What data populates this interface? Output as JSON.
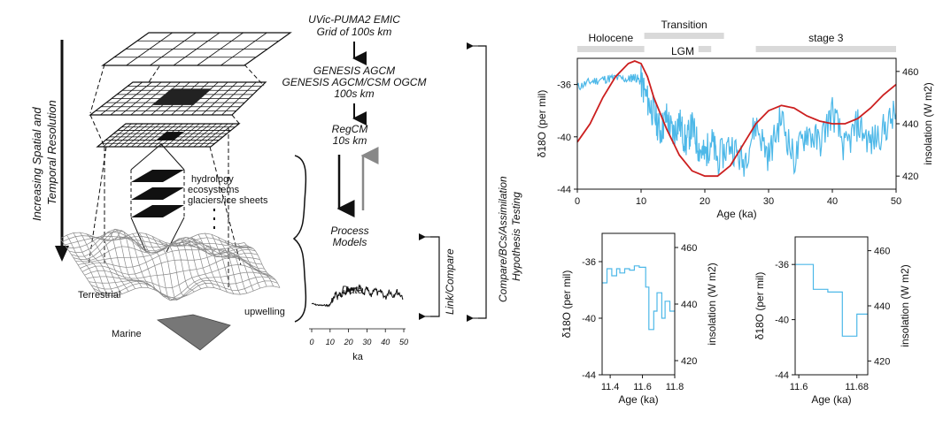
{
  "left_panel": {
    "vertical_title_line1": "Increasing Spatial and",
    "vertical_title_line2": "Temporal Resolution",
    "layer_labels": [
      "hydrology",
      "ecosystems",
      "glaciers/ice sheets"
    ],
    "terrain_labels": {
      "terrestrial": "Terrestrial",
      "marine": "Marine",
      "upwelling": "upwelling"
    }
  },
  "middle_panel": {
    "models": [
      {
        "line1": "UVic-PUMA2 EMIC",
        "line2": "Grid of 100s km"
      },
      {
        "line1": "GENESIS AGCM",
        "line2": "GENESIS AGCM/CSM OGCM",
        "line3": "100s km"
      },
      {
        "line1": "RegCM",
        "line2": "10s km"
      },
      {
        "line1": "Process",
        "line2": "Models"
      },
      {
        "line1": "Data"
      }
    ],
    "compare_line1": "Compare/BCs/Assimilation",
    "compare_line2": "Hypothesis Testing",
    "link_compare": "Link/Compare",
    "data_axis": {
      "ticks": [
        "0",
        "10",
        "20",
        "30",
        "40",
        "50"
      ],
      "label": "ka"
    }
  },
  "colors": {
    "proxy": "#4db8e8",
    "insolation": "#cc1f1f",
    "period_bar": "#d9d9d9"
  },
  "chart_data": [
    {
      "type": "line",
      "xlabel": "Age (ka)",
      "ylabel": "δ18O (per mil)",
      "y2label": "insolation (W m2)",
      "xlim": [
        0,
        50
      ],
      "ylim": [
        -44,
        -34
      ],
      "y2lim": [
        415,
        465
      ],
      "xticks": [
        "0",
        "10",
        "20",
        "30",
        "40",
        "50"
      ],
      "yticks": [
        "-36",
        "-40",
        "-44"
      ],
      "y2ticks": [
        "460",
        "440",
        "420"
      ],
      "periods": [
        {
          "name": "Holocene",
          "start": 0,
          "end": 10.5
        },
        {
          "name": "Transition",
          "start": 10.5,
          "end": 23
        },
        {
          "name": "LGM",
          "start": 19,
          "end": 21
        },
        {
          "name": "stage 3",
          "start": 28,
          "end": 50
        }
      ],
      "series": [
        {
          "role": "proxy",
          "axis": "left",
          "x": [
            0,
            2,
            4,
            6,
            8,
            9,
            10,
            11,
            12,
            13,
            14,
            15,
            16,
            17,
            18,
            19,
            20,
            21,
            22,
            24,
            26,
            28,
            30,
            32,
            34,
            36,
            38,
            40,
            42,
            44,
            46,
            48,
            50
          ],
          "y": [
            -36.2,
            -35.8,
            -35.6,
            -35.5,
            -35.6,
            -35.4,
            -35.8,
            -37.2,
            -38.2,
            -39.6,
            -38.5,
            -39.8,
            -38.8,
            -40.5,
            -39.2,
            -40.8,
            -41.5,
            -40.2,
            -41.8,
            -40.5,
            -42.0,
            -39.0,
            -41.5,
            -38.5,
            -41.8,
            -39.5,
            -40.5,
            -38.0,
            -41.0,
            -39.0,
            -40.5,
            -39.5,
            -38.2
          ]
        },
        {
          "role": "insolation",
          "axis": "right",
          "x": [
            0,
            2,
            4,
            6,
            8,
            9,
            10,
            11,
            12,
            14,
            16,
            18,
            20,
            22,
            24,
            26,
            28,
            30,
            32,
            34,
            36,
            38,
            40,
            42,
            44,
            46,
            48,
            50
          ],
          "y": [
            433,
            440,
            450,
            458,
            463,
            464,
            463,
            458,
            450,
            438,
            428,
            422,
            420,
            420,
            424,
            432,
            440,
            445,
            447,
            446,
            443,
            441,
            440,
            440,
            442,
            446,
            451,
            455
          ]
        }
      ]
    },
    {
      "type": "line",
      "xlabel": "Age (ka)",
      "ylabel": "δ18O (per mil)",
      "y2label": "insolation (W m2)",
      "xlim": [
        11.35,
        11.8
      ],
      "ylim": [
        -44,
        -34
      ],
      "y2lim": [
        415,
        465
      ],
      "xticks": [
        "11.4",
        "11.6",
        "11.8"
      ],
      "yticks": [
        "-36",
        "-40",
        "-44"
      ],
      "y2ticks": [
        "460",
        "440",
        "420"
      ],
      "series": [
        {
          "role": "proxy",
          "axis": "left",
          "step": true,
          "x": [
            11.35,
            11.38,
            11.41,
            11.44,
            11.46,
            11.49,
            11.52,
            11.55,
            11.58,
            11.62,
            11.64,
            11.67,
            11.69,
            11.72,
            11.74,
            11.77,
            11.8
          ],
          "y": [
            -37.5,
            -36.5,
            -37.0,
            -36.5,
            -36.8,
            -36.5,
            -36.6,
            -36.3,
            -36.4,
            -37.8,
            -40.8,
            -39.5,
            -38.2,
            -40.0,
            -38.8,
            -39.5,
            -39.5
          ]
        }
      ]
    },
    {
      "type": "line",
      "xlabel": "Age (ka)",
      "ylabel": "δ18O (per mil)",
      "y2label": "insolation (W m2)",
      "xlim": [
        11.595,
        11.695
      ],
      "ylim": [
        -44,
        -34
      ],
      "y2lim": [
        415,
        465
      ],
      "xticks": [
        "11.6",
        "11.68"
      ],
      "yticks": [
        "-36",
        "-40",
        "-44"
      ],
      "y2ticks": [
        "460",
        "440",
        "420"
      ],
      "series": [
        {
          "role": "proxy",
          "axis": "left",
          "step": true,
          "x": [
            11.595,
            11.62,
            11.64,
            11.66,
            11.68,
            11.695
          ],
          "y": [
            -36.0,
            -37.8,
            -38.0,
            -41.2,
            -39.6,
            -39.6
          ]
        }
      ]
    }
  ]
}
